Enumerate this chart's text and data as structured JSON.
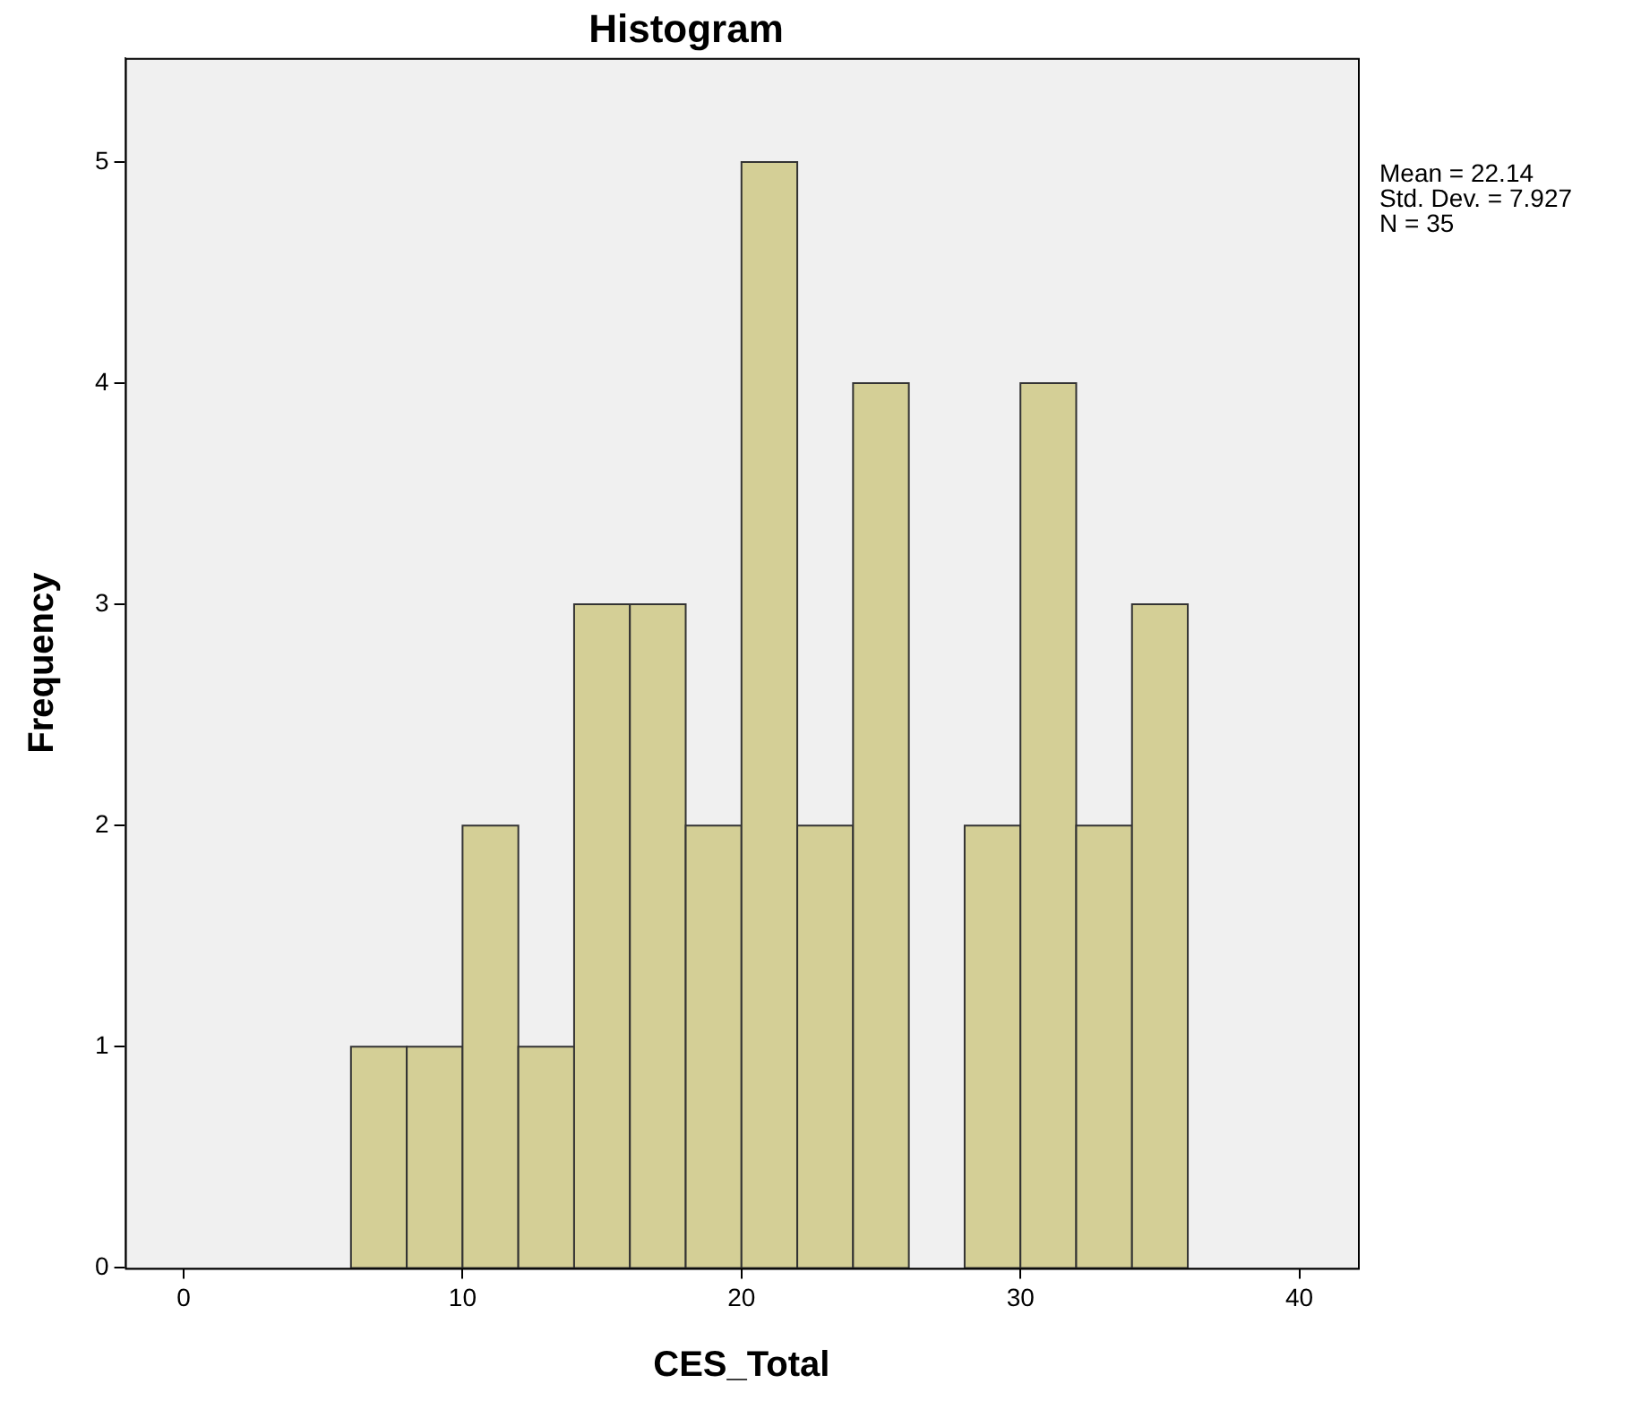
{
  "chart_data": {
    "type": "histogram",
    "title": "Histogram",
    "xlabel": "CES_Total",
    "ylabel": "Frequency",
    "bins": [
      6,
      8,
      10,
      12,
      14,
      16,
      18,
      20,
      22,
      24,
      26,
      28,
      30,
      32,
      34,
      36
    ],
    "values": [
      1,
      1,
      2,
      1,
      3,
      3,
      2,
      5,
      2,
      4,
      0,
      2,
      4,
      2,
      3
    ],
    "color": "#d4cf96",
    "xlim": [
      -2.1,
      42.1
    ],
    "xticks": [
      0,
      10,
      20,
      30,
      40
    ],
    "ylim": [
      0,
      5.47
    ],
    "yticks": [
      0,
      1,
      2,
      3,
      4,
      5
    ],
    "grid": false,
    "legend": false,
    "annotations": [
      "Mean = 22.14",
      "Std. Dev. = 7.927",
      "N = 35"
    ]
  }
}
